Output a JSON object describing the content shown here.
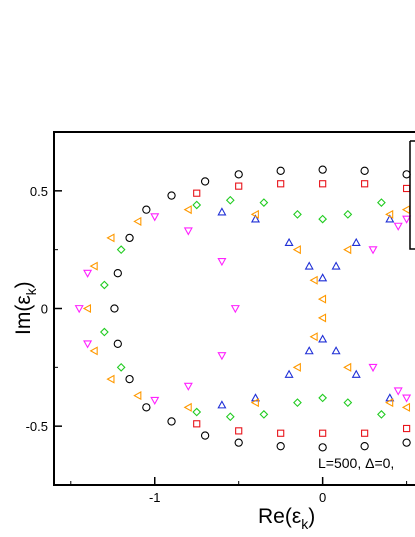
{
  "chart_data": {
    "type": "scatter",
    "xlabel": "Re(ε",
    "xlabel_sub": "k",
    "xlabel_close": ")",
    "ylabel": "Im(ε",
    "ylabel_sub": "k",
    "ylabel_close": ")",
    "xlim": [
      -1.6,
      0.55
    ],
    "ylim": [
      -0.75,
      0.75
    ],
    "xticks": [
      {
        "value": -1,
        "label": "-1"
      },
      {
        "value": 0,
        "label": "0"
      }
    ],
    "yticks": [
      {
        "value": 0.5,
        "label": "0.5"
      },
      {
        "value": 0,
        "label": "0"
      },
      {
        "value": -0.5,
        "label": "-0.5"
      }
    ],
    "annotation": "L=500, Δ=0,",
    "legend": "right (partially cropped)",
    "grid": false,
    "series": [
      {
        "marker": "circle",
        "color": "#000000",
        "values": [
          {
            "x": -0.9,
            "y": 0.48
          },
          {
            "x": -0.7,
            "y": 0.54
          },
          {
            "x": -0.5,
            "y": 0.57
          },
          {
            "x": -0.25,
            "y": 0.585
          },
          {
            "x": 0.0,
            "y": 0.59
          },
          {
            "x": 0.25,
            "y": 0.585
          },
          {
            "x": 0.5,
            "y": 0.57
          },
          {
            "x": -1.05,
            "y": 0.42
          },
          {
            "x": -1.15,
            "y": 0.3
          },
          {
            "x": -1.22,
            "y": 0.15
          },
          {
            "x": -1.24,
            "y": 0.0
          },
          {
            "x": -1.22,
            "y": -0.15
          },
          {
            "x": -1.15,
            "y": -0.3
          },
          {
            "x": -1.05,
            "y": -0.42
          },
          {
            "x": -0.9,
            "y": -0.48
          },
          {
            "x": -0.7,
            "y": -0.54
          },
          {
            "x": -0.5,
            "y": -0.57
          },
          {
            "x": -0.25,
            "y": -0.585
          },
          {
            "x": 0.0,
            "y": -0.59
          },
          {
            "x": 0.25,
            "y": -0.585
          },
          {
            "x": 0.5,
            "y": -0.57
          }
        ]
      },
      {
        "marker": "square",
        "color": "#e8141b",
        "values": [
          {
            "x": -0.75,
            "y": 0.49
          },
          {
            "x": -0.5,
            "y": 0.52
          },
          {
            "x": -0.25,
            "y": 0.53
          },
          {
            "x": 0.0,
            "y": 0.53
          },
          {
            "x": 0.25,
            "y": 0.53
          },
          {
            "x": 0.5,
            "y": 0.51
          },
          {
            "x": -0.75,
            "y": -0.49
          },
          {
            "x": -0.5,
            "y": -0.52
          },
          {
            "x": -0.25,
            "y": -0.53
          },
          {
            "x": 0.0,
            "y": -0.53
          },
          {
            "x": 0.25,
            "y": -0.53
          },
          {
            "x": 0.5,
            "y": -0.51
          }
        ]
      },
      {
        "marker": "diamond",
        "color": "#22cc22",
        "values": [
          {
            "x": -0.75,
            "y": 0.44
          },
          {
            "x": -0.55,
            "y": 0.46
          },
          {
            "x": -0.35,
            "y": 0.45
          },
          {
            "x": -0.15,
            "y": 0.4
          },
          {
            "x": 0.0,
            "y": 0.38
          },
          {
            "x": 0.15,
            "y": 0.4
          },
          {
            "x": 0.35,
            "y": 0.45
          },
          {
            "x": -1.2,
            "y": 0.25
          },
          {
            "x": -1.3,
            "y": 0.1
          },
          {
            "x": -1.3,
            "y": -0.1
          },
          {
            "x": -1.2,
            "y": -0.25
          },
          {
            "x": -0.75,
            "y": -0.44
          },
          {
            "x": -0.55,
            "y": -0.46
          },
          {
            "x": -0.35,
            "y": -0.45
          },
          {
            "x": -0.15,
            "y": -0.4
          },
          {
            "x": 0.0,
            "y": -0.38
          },
          {
            "x": 0.15,
            "y": -0.4
          },
          {
            "x": 0.35,
            "y": -0.45
          }
        ]
      },
      {
        "marker": "triangle-up",
        "color": "#1f2fd6",
        "values": [
          {
            "x": -0.6,
            "y": 0.41
          },
          {
            "x": -0.4,
            "y": 0.38
          },
          {
            "x": -0.2,
            "y": 0.28
          },
          {
            "x": -0.08,
            "y": 0.18
          },
          {
            "x": 0.0,
            "y": 0.13
          },
          {
            "x": 0.08,
            "y": 0.18
          },
          {
            "x": 0.2,
            "y": 0.28
          },
          {
            "x": 0.4,
            "y": 0.38
          },
          {
            "x": -0.6,
            "y": -0.41
          },
          {
            "x": -0.4,
            "y": -0.38
          },
          {
            "x": -0.2,
            "y": -0.28
          },
          {
            "x": -0.08,
            "y": -0.18
          },
          {
            "x": 0.0,
            "y": -0.13
          },
          {
            "x": 0.08,
            "y": -0.18
          },
          {
            "x": 0.2,
            "y": -0.28
          },
          {
            "x": 0.4,
            "y": -0.38
          }
        ]
      },
      {
        "marker": "triangle-left",
        "color": "#ff9900",
        "values": [
          {
            "x": -1.4,
            "y": 0.0
          },
          {
            "x": -1.36,
            "y": 0.18
          },
          {
            "x": -1.26,
            "y": 0.3
          },
          {
            "x": -1.1,
            "y": 0.37
          },
          {
            "x": -1.36,
            "y": -0.18
          },
          {
            "x": -1.26,
            "y": -0.3
          },
          {
            "x": -1.1,
            "y": -0.37
          },
          {
            "x": -0.8,
            "y": 0.42
          },
          {
            "x": -0.4,
            "y": 0.4
          },
          {
            "x": -0.15,
            "y": 0.25
          },
          {
            "x": -0.05,
            "y": 0.12
          },
          {
            "x": 0.0,
            "y": 0.04
          },
          {
            "x": 0.15,
            "y": 0.25
          },
          {
            "x": 0.4,
            "y": 0.4
          },
          {
            "x": 0.5,
            "y": 0.42
          },
          {
            "x": -0.8,
            "y": -0.42
          },
          {
            "x": -0.4,
            "y": -0.4
          },
          {
            "x": -0.15,
            "y": -0.25
          },
          {
            "x": -0.05,
            "y": -0.12
          },
          {
            "x": 0.0,
            "y": -0.04
          },
          {
            "x": 0.15,
            "y": -0.25
          },
          {
            "x": 0.4,
            "y": -0.4
          },
          {
            "x": 0.5,
            "y": -0.42
          }
        ]
      },
      {
        "marker": "triangle-down",
        "color": "#ff22ff",
        "values": [
          {
            "x": -1.0,
            "y": 0.39
          },
          {
            "x": -0.8,
            "y": 0.33
          },
          {
            "x": -0.6,
            "y": 0.2
          },
          {
            "x": -0.52,
            "y": 0.0
          },
          {
            "x": -0.6,
            "y": -0.2
          },
          {
            "x": -0.8,
            "y": -0.33
          },
          {
            "x": -1.0,
            "y": -0.39
          },
          {
            "x": 0.3,
            "y": 0.25
          },
          {
            "x": 0.45,
            "y": 0.35
          },
          {
            "x": 0.5,
            "y": 0.38
          },
          {
            "x": 0.3,
            "y": -0.25
          },
          {
            "x": 0.45,
            "y": -0.35
          },
          {
            "x": 0.5,
            "y": -0.38
          },
          {
            "x": -1.4,
            "y": 0.15
          },
          {
            "x": -1.45,
            "y": 0.0
          },
          {
            "x": -1.4,
            "y": -0.15
          }
        ]
      }
    ]
  }
}
